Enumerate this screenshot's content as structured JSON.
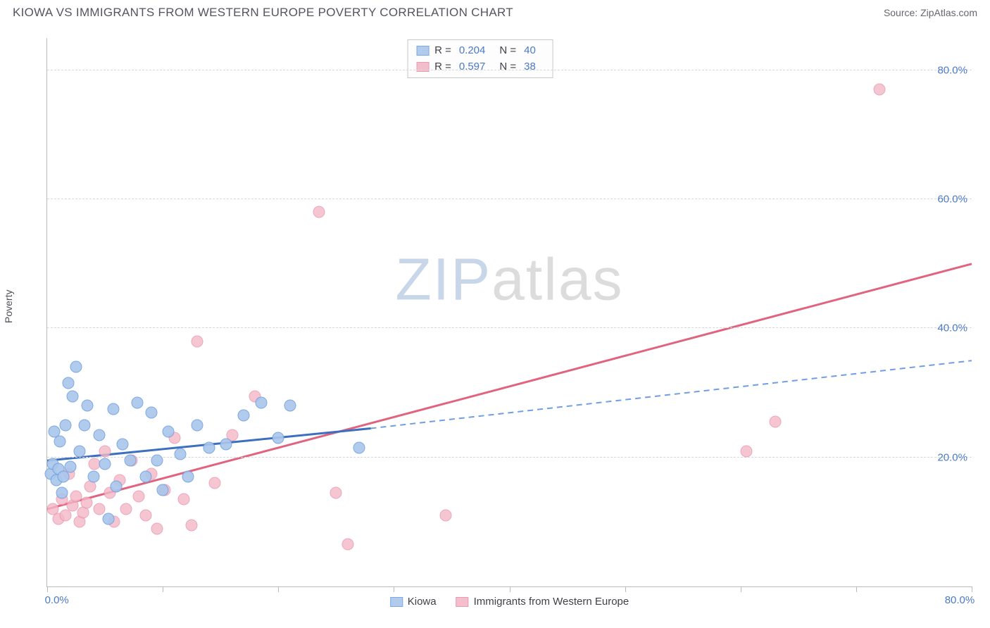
{
  "header": {
    "title": "KIOWA VS IMMIGRANTS FROM WESTERN EUROPE POVERTY CORRELATION CHART",
    "source_prefix": "Source: ",
    "source_name": "ZipAtlas.com"
  },
  "ylabel": "Poverty",
  "watermark": {
    "part1": "ZIP",
    "part2": "atlas"
  },
  "axes": {
    "xlim": [
      0,
      80
    ],
    "ylim": [
      0,
      85
    ],
    "ytick_values": [
      20,
      40,
      60,
      80
    ],
    "ytick_labels": [
      "20.0%",
      "40.0%",
      "60.0%",
      "80.0%"
    ],
    "xtick_values": [
      0,
      10,
      20,
      30,
      40,
      50,
      60,
      70,
      80
    ],
    "xtick_labels_shown": {
      "0": "0.0%",
      "80": "80.0%"
    },
    "grid_color": "#d8d8d8",
    "axis_color": "#bbbbbb",
    "tick_label_color": "#4a7ac8",
    "tick_fontsize": 15
  },
  "series": {
    "A": {
      "name": "Kiowa",
      "marker_fill": "#a9c6ec",
      "marker_stroke": "#6f9fe0",
      "marker_fill_opacity": 0.55,
      "marker_radius": 8.5,
      "line_color": "#3d6fbf",
      "line_dash_color": "#6f9fe0",
      "R_label": "R =",
      "R_value": "0.204",
      "N_label": "N =",
      "N_value": "40",
      "trend_solid": {
        "x1": 0,
        "y1": 19.5,
        "x2": 28,
        "y2": 24.5
      },
      "trend_dash": {
        "x1": 28,
        "y1": 24.5,
        "x2": 80,
        "y2": 35
      },
      "points": [
        [
          0.3,
          17.5
        ],
        [
          0.5,
          19
        ],
        [
          0.6,
          24
        ],
        [
          0.8,
          16.5
        ],
        [
          1.0,
          18.2
        ],
        [
          1.1,
          22.5
        ],
        [
          1.3,
          14.5
        ],
        [
          1.4,
          17.0
        ],
        [
          1.6,
          25.0
        ],
        [
          1.8,
          31.5
        ],
        [
          2.0,
          18.5
        ],
        [
          2.2,
          29.5
        ],
        [
          2.5,
          34.0
        ],
        [
          2.8,
          21.0
        ],
        [
          3.2,
          25.0
        ],
        [
          3.5,
          28.0
        ],
        [
          4.0,
          17.0
        ],
        [
          4.5,
          23.5
        ],
        [
          5.0,
          19.0
        ],
        [
          5.3,
          10.5
        ],
        [
          5.7,
          27.5
        ],
        [
          6.0,
          15.5
        ],
        [
          6.5,
          22.0
        ],
        [
          7.2,
          19.5
        ],
        [
          7.8,
          28.5
        ],
        [
          8.5,
          17.0
        ],
        [
          9.0,
          27.0
        ],
        [
          9.5,
          19.5
        ],
        [
          10.0,
          15.0
        ],
        [
          10.5,
          24.0
        ],
        [
          11.5,
          20.5
        ],
        [
          12.2,
          17.0
        ],
        [
          13.0,
          25.0
        ],
        [
          14.0,
          21.5
        ],
        [
          15.5,
          22.0
        ],
        [
          17.0,
          26.5
        ],
        [
          18.5,
          28.5
        ],
        [
          20.0,
          23.0
        ],
        [
          21.0,
          28.0
        ],
        [
          27.0,
          21.5
        ]
      ]
    },
    "B": {
      "name": "Immigrants from Western Europe",
      "marker_fill": "#f3b8c7",
      "marker_stroke": "#e892ab",
      "marker_fill_opacity": 0.45,
      "marker_radius": 8.5,
      "line_color": "#e0647f",
      "R_label": "R =",
      "R_value": "0.597",
      "N_label": "N =",
      "N_value": "38",
      "trend_solid": {
        "x1": 0,
        "y1": 12.0,
        "x2": 80,
        "y2": 50.0
      },
      "points": [
        [
          0.5,
          12.0
        ],
        [
          1.0,
          10.5
        ],
        [
          1.3,
          13.5
        ],
        [
          1.6,
          11.0
        ],
        [
          1.9,
          17.5
        ],
        [
          2.2,
          12.5
        ],
        [
          2.5,
          14.0
        ],
        [
          2.8,
          10.0
        ],
        [
          3.1,
          11.5
        ],
        [
          3.4,
          13.0
        ],
        [
          3.7,
          15.5
        ],
        [
          4.1,
          19.0
        ],
        [
          4.5,
          12.0
        ],
        [
          5.0,
          21.0
        ],
        [
          5.4,
          14.5
        ],
        [
          5.8,
          10.0
        ],
        [
          6.3,
          16.5
        ],
        [
          6.8,
          12.0
        ],
        [
          7.3,
          19.5
        ],
        [
          7.9,
          14.0
        ],
        [
          8.5,
          11.0
        ],
        [
          9.0,
          17.5
        ],
        [
          9.5,
          9.0
        ],
        [
          10.2,
          15.0
        ],
        [
          11.0,
          23.0
        ],
        [
          11.8,
          13.5
        ],
        [
          12.5,
          9.5
        ],
        [
          13.0,
          38.0
        ],
        [
          14.5,
          16.0
        ],
        [
          16.0,
          23.5
        ],
        [
          18.0,
          29.5
        ],
        [
          23.5,
          58.0
        ],
        [
          25.0,
          14.5
        ],
        [
          26.0,
          6.5
        ],
        [
          34.5,
          11.0
        ],
        [
          60.5,
          21.0
        ],
        [
          63.0,
          25.5
        ],
        [
          72.0,
          77.0
        ]
      ]
    }
  },
  "bottom_legend": [
    "Kiowa",
    "Immigrants from Western Europe"
  ],
  "background_color": "#ffffff"
}
